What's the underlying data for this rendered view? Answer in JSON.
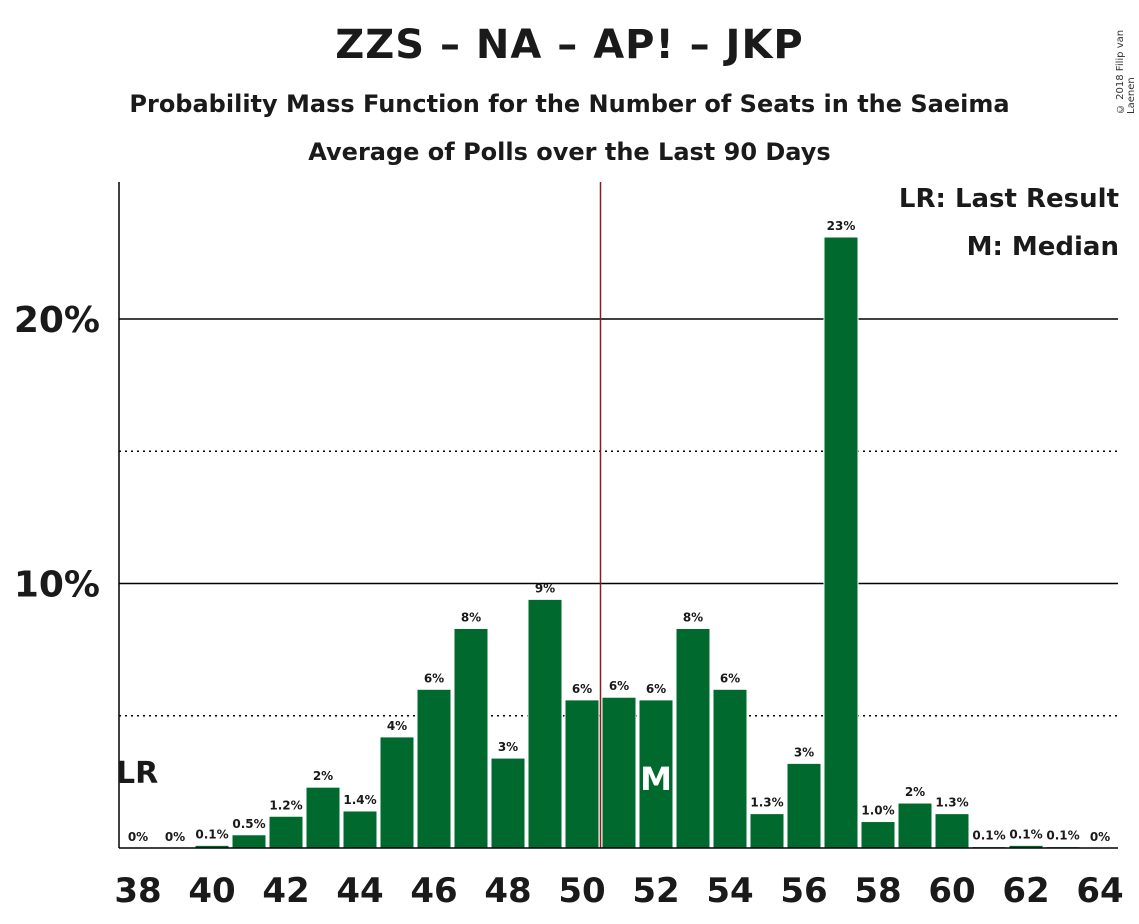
{
  "chart_data": {
    "type": "bar",
    "title": "ZZS – NA – AP! – JKP",
    "subtitle": "Probability Mass Function for the Number of Seats in the Saeima",
    "subtitle2": "Average of Polls over the Last 90 Days",
    "copyright": "© 2018 Filip van Laenen",
    "legend": {
      "lr": "LR: Last Result",
      "m": "M: Median",
      "placement": "top-right"
    },
    "categories": [
      38,
      39,
      40,
      41,
      42,
      43,
      44,
      45,
      46,
      47,
      48,
      49,
      50,
      51,
      52,
      53,
      54,
      55,
      56,
      57,
      58,
      59,
      60,
      61,
      62,
      63,
      64
    ],
    "values": [
      0,
      0,
      0.1,
      0.5,
      1.2,
      2.3,
      1.4,
      4.2,
      6.0,
      8.3,
      3.4,
      9.4,
      5.6,
      5.7,
      5.6,
      8.3,
      6.0,
      1.3,
      3.2,
      23.1,
      1.0,
      1.7,
      1.3,
      0.05,
      0.1,
      0.05,
      0
    ],
    "labels": [
      "0%",
      "0%",
      "0.1%",
      "0.5%",
      "1.2%",
      "2%",
      "1.4%",
      "4%",
      "6%",
      "8%",
      "3%",
      "9%",
      "6%",
      "6%",
      "6%",
      "8%",
      "6%",
      "1.3%",
      "3%",
      "23%",
      "1.0%",
      "2%",
      "1.3%",
      "0.1%",
      "0.1%",
      "0.1%",
      "0%"
    ],
    "x_tick_labels": [
      "38",
      "40",
      "42",
      "44",
      "46",
      "48",
      "50",
      "52",
      "54",
      "56",
      "58",
      "60",
      "62",
      "64"
    ],
    "y_tick_labels": [
      {
        "value": 10,
        "label": "10%"
      },
      {
        "value": 20,
        "label": "20%"
      }
    ],
    "ylim": [
      0,
      25
    ],
    "gridlines": {
      "solid": [
        10,
        20
      ],
      "dotted": [
        5,
        15
      ]
    },
    "majority_line_x": 50.5,
    "last_result": {
      "seat": 38,
      "label": "LR"
    },
    "median": {
      "seat": 52,
      "label": "M"
    },
    "colors": {
      "bar": "#006a2e",
      "majority": "#8b1a1a",
      "text": "#1a1a1a",
      "grid": "#000000"
    }
  }
}
